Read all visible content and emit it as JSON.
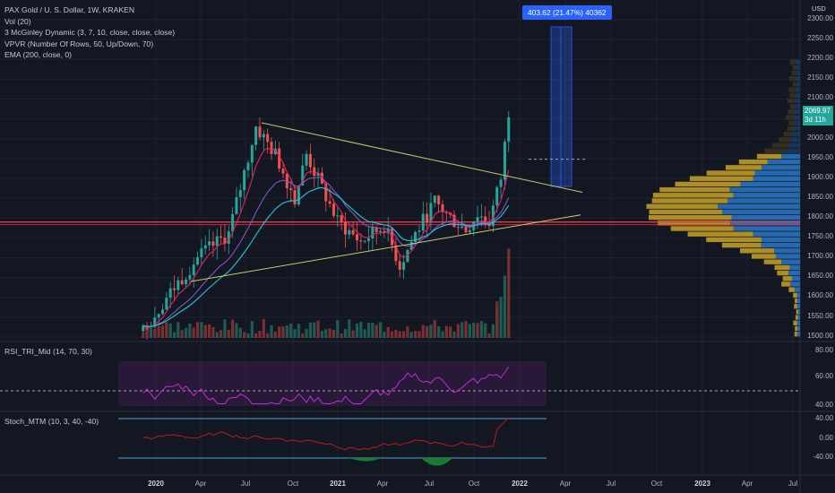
{
  "legend": {
    "symbol": "PAX Gold / U. S. Dollar, 1W, KRAKEN",
    "vol": "Vol (20)",
    "mcginley": "3 McGinley Dynamic (3, 7, 10, close, close, close)",
    "vpvr": "VPVR (Number Of Rows, 50, Up/Down, 70)",
    "ema": "EMA (200, close, 0)"
  },
  "measure": {
    "label": "403.62 (21.47%) 40362"
  },
  "price_axis": {
    "currency": "USD",
    "labels": [
      "2300.00",
      "2250.00",
      "2200.00",
      "2150.00",
      "2100.00",
      "2050.00",
      "2000.00",
      "1950.00",
      "1900.00",
      "1850.00",
      "1800.00",
      "1750.00",
      "1700.00",
      "1650.00",
      "1600.00",
      "1550.00",
      "1500.00"
    ],
    "current_price": "2069.97",
    "current_timer": "3d 11h"
  },
  "rsi_pane": {
    "title": "RSI_TRI_Mid (14, 70, 30)",
    "labels": [
      "80.00",
      "60.00",
      "40.00"
    ]
  },
  "stoch_pane": {
    "title": "Stoch_MTM (10, 3, 40, -40)",
    "labels": [
      "40.00",
      "0.00",
      "-40.00"
    ]
  },
  "time_axis": {
    "labels": [
      {
        "text": "2020",
        "year": true
      },
      {
        "text": "Apr",
        "year": false
      },
      {
        "text": "Jul",
        "year": false
      },
      {
        "text": "Oct",
        "year": false
      },
      {
        "text": "2021",
        "year": true
      },
      {
        "text": "Apr",
        "year": false
      },
      {
        "text": "Jul",
        "year": false
      },
      {
        "text": "Oct",
        "year": false
      },
      {
        "text": "2022",
        "year": true
      },
      {
        "text": "Apr",
        "year": false
      },
      {
        "text": "Jul",
        "year": false
      },
      {
        "text": "Oct",
        "year": false
      },
      {
        "text": "2023",
        "year": true
      },
      {
        "text": "Apr",
        "year": false
      },
      {
        "text": "Jul",
        "year": false
      }
    ]
  },
  "colors": {
    "up": "#26a69a",
    "down": "#ef5350",
    "background": "#131722",
    "trendline": "#c9c96b",
    "support": "#f23645",
    "rsi": "#c02ed6",
    "measure": "#2962ff"
  }
}
